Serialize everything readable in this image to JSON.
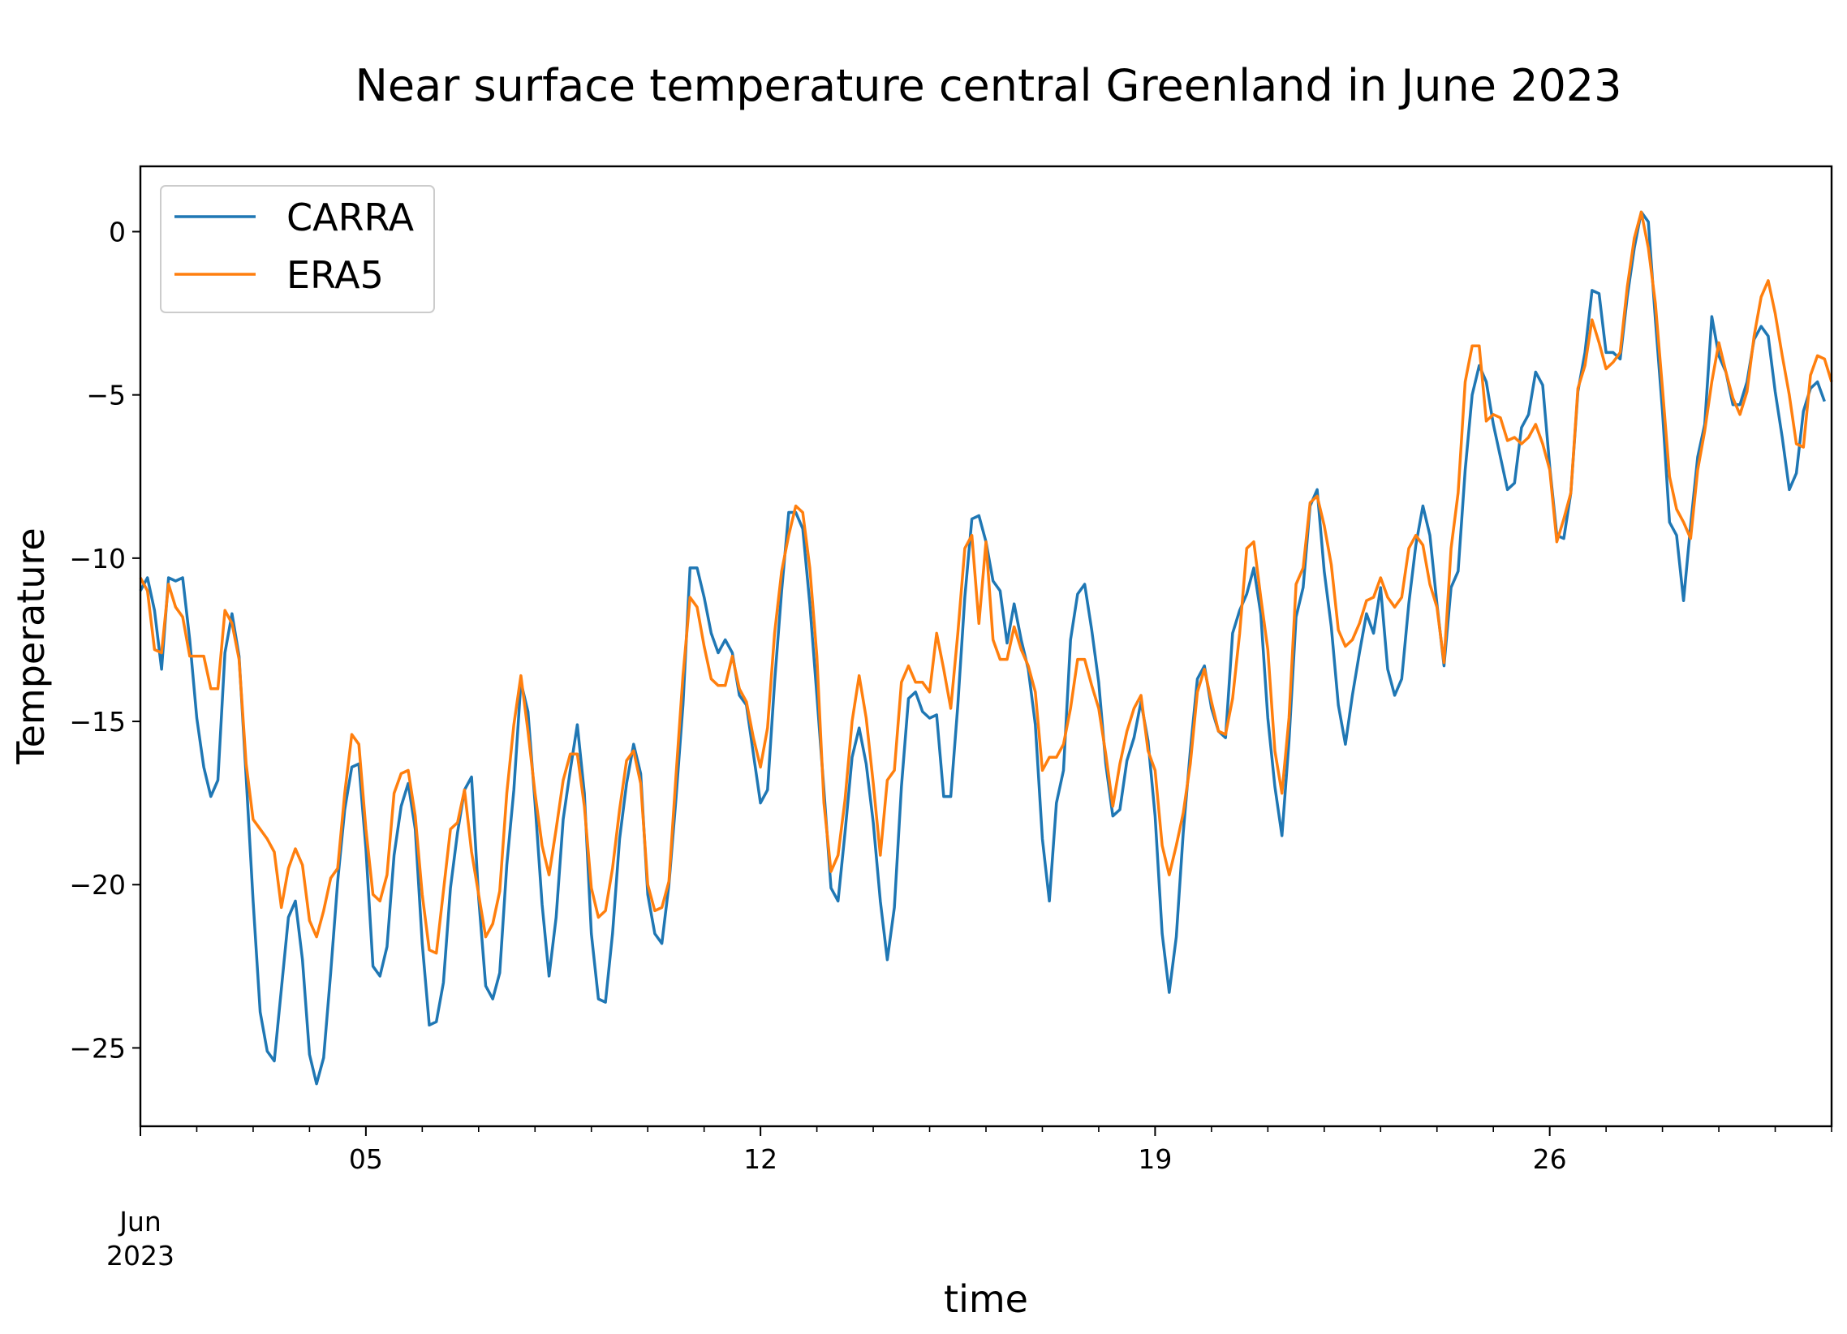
{
  "chart_data": {
    "type": "line",
    "title": "Near surface temperature central Greenland in June 2023",
    "xlabel": "time",
    "ylabel": "Temperature",
    "x_start": "2023-06-01T00:00",
    "x_step_hours": 3,
    "x_ticks": [
      {
        "day": 5,
        "label": "05"
      },
      {
        "day": 12,
        "label": "12"
      },
      {
        "day": 19,
        "label": "19"
      },
      {
        "day": 26,
        "label": "26"
      }
    ],
    "x_offset_label": {
      "line1": "Jun",
      "line2": "2023"
    },
    "y_ticks": [
      0,
      -5,
      -10,
      -15,
      -20,
      -25
    ],
    "y_tick_labels": [
      "0",
      "−5",
      "−10",
      "−15",
      "−20",
      "−25"
    ],
    "ylim": [
      -27.4,
      2.0
    ],
    "grid": false,
    "legend": {
      "placement": "top-left",
      "entries": [
        "CARRA",
        "ERA5"
      ]
    },
    "series": [
      {
        "name": "CARRA",
        "color": "#1f77b4",
        "values": [
          -11.0,
          -10.6,
          -11.6,
          -13.4,
          -10.6,
          -10.7,
          -10.6,
          -12.5,
          -14.9,
          -16.4,
          -17.3,
          -16.8,
          -12.9,
          -11.7,
          -13.0,
          -16.7,
          -20.5,
          -23.9,
          -25.1,
          -25.4,
          -23.2,
          -21.0,
          -20.5,
          -22.3,
          -25.2,
          -26.1,
          -25.3,
          -22.7,
          -19.9,
          -17.7,
          -16.4,
          -16.3,
          -18.9,
          -22.5,
          -22.8,
          -21.9,
          -19.1,
          -17.6,
          -16.9,
          -18.3,
          -21.8,
          -24.3,
          -24.2,
          -23.0,
          -20.1,
          -18.4,
          -17.1,
          -16.7,
          -20.4,
          -23.1,
          -23.5,
          -22.7,
          -19.4,
          -17.1,
          -13.8,
          -14.7,
          -17.5,
          -20.6,
          -22.8,
          -21.0,
          -18.0,
          -16.5,
          -15.1,
          -17.2,
          -21.5,
          -23.5,
          -23.6,
          -21.5,
          -18.6,
          -16.9,
          -15.7,
          -16.6,
          -20.3,
          -21.5,
          -21.8,
          -20.0,
          -17.4,
          -14.5,
          -10.3,
          -10.3,
          -11.2,
          -12.3,
          -12.9,
          -12.5,
          -12.9,
          -14.2,
          -14.5,
          -16.0,
          -17.5,
          -17.1,
          -13.8,
          -11.0,
          -8.6,
          -8.6,
          -9.1,
          -11.4,
          -14.2,
          -17.1,
          -20.1,
          -20.5,
          -18.4,
          -16.1,
          -15.2,
          -16.3,
          -18.1,
          -20.5,
          -22.3,
          -20.7,
          -17.0,
          -14.3,
          -14.1,
          -14.7,
          -14.9,
          -14.8,
          -17.3,
          -17.3,
          -14.5,
          -11.2,
          -8.8,
          -8.7,
          -9.5,
          -10.7,
          -11.0,
          -12.6,
          -11.4,
          -12.5,
          -13.4,
          -15.1,
          -18.6,
          -20.5,
          -17.5,
          -16.5,
          -12.5,
          -11.1,
          -10.8,
          -12.2,
          -13.8,
          -16.3,
          -17.9,
          -17.7,
          -16.2,
          -15.5,
          -14.4,
          -15.6,
          -17.9,
          -21.5,
          -23.3,
          -21.6,
          -18.4,
          -15.9,
          -13.7,
          -13.3,
          -14.6,
          -15.3,
          -15.5,
          -12.3,
          -11.6,
          -11.1,
          -10.3,
          -11.7,
          -14.9,
          -17.0,
          -18.5,
          -15.6,
          -11.8,
          -10.9,
          -8.4,
          -7.9,
          -10.4,
          -12.1,
          -14.5,
          -15.7,
          -14.2,
          -12.9,
          -11.7,
          -12.3,
          -10.9,
          -13.4,
          -14.2,
          -13.7,
          -11.4,
          -9.6,
          -8.4,
          -9.3,
          -11.4,
          -13.3,
          -10.9,
          -10.4,
          -7.3,
          -5.0,
          -4.1,
          -4.6,
          -5.9,
          -6.9,
          -7.9,
          -7.7,
          -6.0,
          -5.6,
          -4.3,
          -4.7,
          -7.2,
          -9.3,
          -9.4,
          -8.0,
          -4.9,
          -3.7,
          -1.8,
          -1.9,
          -3.7,
          -3.7,
          -3.9,
          -2.0,
          -0.5,
          0.6,
          0.3,
          -2.7,
          -5.5,
          -8.9,
          -9.3,
          -11.3,
          -9.0,
          -6.9,
          -5.9,
          -2.6,
          -3.8,
          -4.3,
          -5.3,
          -5.3,
          -4.6,
          -3.3,
          -2.9,
          -3.2,
          -4.9,
          -6.3,
          -7.9,
          -7.4,
          -5.5,
          -4.8,
          -4.6,
          -5.2
        ]
      },
      {
        "name": "ERA5",
        "color": "#ff7f0e",
        "values": [
          -10.6,
          -11.0,
          -12.8,
          -12.9,
          -10.8,
          -11.5,
          -11.8,
          -13.0,
          -13.0,
          -13.0,
          -14.0,
          -14.0,
          -11.6,
          -12.0,
          -13.1,
          -16.3,
          -18.0,
          -18.3,
          -18.6,
          -19.0,
          -20.7,
          -19.5,
          -18.9,
          -19.4,
          -21.1,
          -21.6,
          -20.8,
          -19.8,
          -19.5,
          -17.2,
          -15.4,
          -15.7,
          -18.3,
          -20.3,
          -20.5,
          -19.7,
          -17.2,
          -16.6,
          -16.5,
          -17.9,
          -20.3,
          -22.0,
          -22.1,
          -20.2,
          -18.3,
          -18.1,
          -17.1,
          -19.0,
          -20.3,
          -21.6,
          -21.2,
          -20.2,
          -17.2,
          -15.1,
          -13.6,
          -15.3,
          -17.2,
          -18.8,
          -19.7,
          -18.3,
          -16.8,
          -16.0,
          -16.0,
          -17.6,
          -20.1,
          -21.0,
          -20.8,
          -19.5,
          -17.7,
          -16.2,
          -15.9,
          -16.9,
          -20.0,
          -20.8,
          -20.7,
          -19.9,
          -16.7,
          -13.6,
          -11.2,
          -11.5,
          -12.7,
          -13.7,
          -13.9,
          -13.9,
          -13.0,
          -14.0,
          -14.4,
          -15.5,
          -16.4,
          -15.2,
          -12.3,
          -10.4,
          -9.3,
          -8.4,
          -8.6,
          -10.3,
          -13.0,
          -17.5,
          -19.6,
          -19.1,
          -17.4,
          -15.0,
          -13.6,
          -14.9,
          -16.9,
          -19.1,
          -16.8,
          -16.5,
          -13.8,
          -13.3,
          -13.8,
          -13.8,
          -14.1,
          -12.3,
          -13.4,
          -14.6,
          -12.3,
          -9.7,
          -9.3,
          -12.0,
          -9.5,
          -12.5,
          -13.1,
          -13.1,
          -12.1,
          -12.8,
          -13.3,
          -14.1,
          -16.5,
          -16.1,
          -16.1,
          -15.7,
          -14.6,
          -13.1,
          -13.1,
          -13.9,
          -14.6,
          -16.0,
          -17.6,
          -16.3,
          -15.3,
          -14.6,
          -14.2,
          -15.9,
          -16.5,
          -18.8,
          -19.7,
          -18.8,
          -17.8,
          -16.3,
          -14.1,
          -13.4,
          -14.4,
          -15.3,
          -15.4,
          -14.3,
          -12.3,
          -9.7,
          -9.5,
          -11.2,
          -12.8,
          -15.9,
          -17.2,
          -14.9,
          -10.8,
          -10.3,
          -8.3,
          -8.1,
          -9.0,
          -10.2,
          -12.2,
          -12.7,
          -12.5,
          -12.0,
          -11.3,
          -11.2,
          -10.6,
          -11.2,
          -11.5,
          -11.2,
          -9.7,
          -9.3,
          -9.6,
          -10.8,
          -11.5,
          -13.2,
          -9.7,
          -8.0,
          -4.6,
          -3.5,
          -3.5,
          -5.8,
          -5.6,
          -5.7,
          -6.4,
          -6.3,
          -6.5,
          -6.3,
          -5.9,
          -6.5,
          -7.3,
          -9.5,
          -8.8,
          -8.0,
          -4.8,
          -4.1,
          -2.7,
          -3.4,
          -4.2,
          -4.0,
          -3.7,
          -1.7,
          -0.2,
          0.6,
          -0.5,
          -2.2,
          -4.8,
          -7.5,
          -8.5,
          -8.9,
          -9.4,
          -7.3,
          -6.1,
          -4.6,
          -3.4,
          -4.3,
          -5.1,
          -5.6,
          -4.9,
          -3.2,
          -2.0,
          -1.5,
          -2.5,
          -3.8,
          -5.0,
          -6.5,
          -6.6,
          -4.4,
          -3.8,
          -3.9,
          -4.6
        ]
      }
    ]
  }
}
